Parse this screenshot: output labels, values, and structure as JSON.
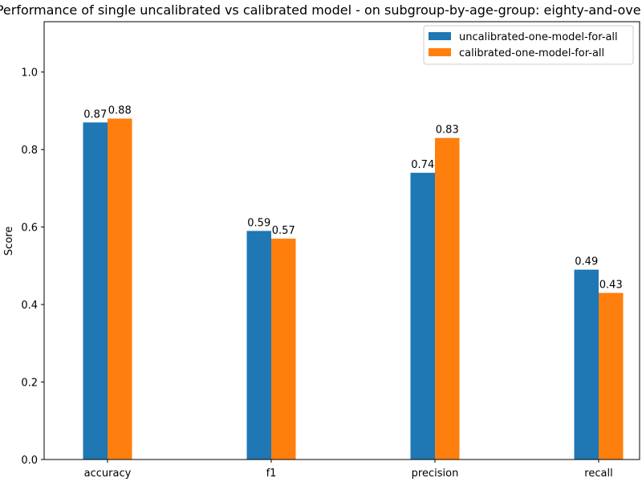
{
  "chart_data": {
    "type": "bar",
    "title": "Performance of single uncalibrated vs calibrated model - on subgroup-by-age-group: eighty-and-over",
    "xlabel": "",
    "ylabel": "Score",
    "ylim": [
      0,
      1.13
    ],
    "yticks": [
      "0.0",
      "0.2",
      "0.4",
      "0.6",
      "0.8",
      "1.0"
    ],
    "grid": false,
    "legend_position": "top-right",
    "categories": [
      "accuracy",
      "f1",
      "precision",
      "recall"
    ],
    "series": [
      {
        "name": "uncalibrated-one-model-for-all",
        "color": "#1f77b4",
        "values": [
          0.87,
          0.59,
          0.74,
          0.49
        ],
        "labels": [
          "0.87",
          "0.59",
          "0.74",
          "0.49"
        ]
      },
      {
        "name": "calibrated-one-model-for-all",
        "color": "#ff7f0e",
        "values": [
          0.88,
          0.57,
          0.83,
          0.43
        ],
        "labels": [
          "0.88",
          "0.57",
          "0.83",
          "0.43"
        ]
      }
    ]
  }
}
